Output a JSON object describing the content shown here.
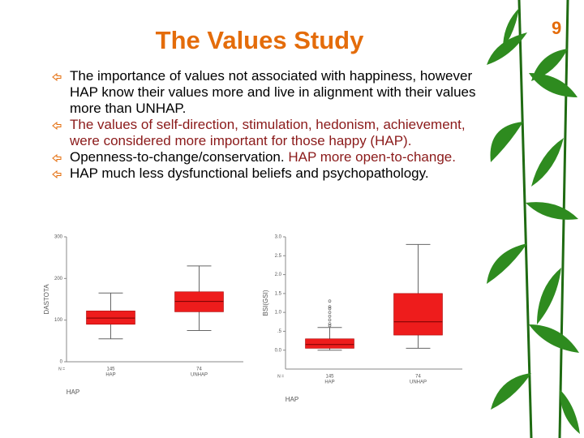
{
  "slide": {
    "title": "The Values Study",
    "page_number": "9",
    "bullets": [
      [
        {
          "text": "The importance of values not associated with happiness, however HAP know their values more and live in alignment with their values more than UNHAP.",
          "color": "#000000"
        }
      ],
      [
        {
          "text": "The values of self-direction, stimulation, hedonism, achievement, were considered more important for those happy (HAP).",
          "color": "#8b1a1a"
        }
      ],
      [
        {
          "text": "Openness-to-change/conservation.",
          "color": "#000000"
        },
        {
          "text": " HAP more open-to-change.",
          "color": "#8b1a1a"
        }
      ],
      [
        {
          "text": "HAP much less dysfunctional beliefs and psychopathology.",
          "color": "#000000"
        }
      ]
    ]
  },
  "chart_data": [
    {
      "type": "boxplot",
      "ylabel": "DASTOTA",
      "xlabel": "HAP",
      "n_prefix": "N =",
      "categories": [
        "HAP",
        "UNHAP"
      ],
      "n_labels": [
        "145",
        "74"
      ],
      "color": "#ee1c1c",
      "boxes": [
        {
          "min": 55,
          "q1": 90,
          "median": 105,
          "q3": 122,
          "max": 165,
          "outliers": []
        },
        {
          "min": 75,
          "q1": 120,
          "median": 145,
          "q3": 168,
          "max": 230,
          "outliers": []
        }
      ],
      "ylim": [
        0,
        300
      ],
      "yticks": [
        0,
        100,
        200,
        300
      ]
    },
    {
      "type": "boxplot",
      "ylabel": "BSI(GSI)",
      "xlabel": "HAP",
      "n_prefix": "N =",
      "categories": [
        "HAP",
        "UNHAP"
      ],
      "n_labels": [
        "145",
        "74"
      ],
      "color": "#ee1c1c",
      "boxes": [
        {
          "min": 0,
          "q1": 0.05,
          "median": 0.15,
          "q3": 0.3,
          "max": 0.6,
          "outliers": [
            0.65,
            0.7,
            0.8,
            0.9,
            1.0,
            1.1,
            1.15,
            1.3
          ]
        },
        {
          "min": 0.05,
          "q1": 0.4,
          "median": 0.75,
          "q3": 1.5,
          "max": 2.8,
          "outliers": []
        }
      ],
      "ylim": [
        -0.5,
        3.0
      ],
      "yticks": [
        {
          "value": 0,
          "label": "0.0"
        },
        {
          "value": 0.5,
          "label": ".5"
        },
        {
          "value": 1,
          "label": "1.0"
        },
        {
          "value": 1.5,
          "label": "1.5"
        },
        {
          "value": 2,
          "label": "2.0"
        },
        {
          "value": 2.5,
          "label": "2.5"
        },
        {
          "value": 3,
          "label": "3.0"
        }
      ]
    }
  ]
}
